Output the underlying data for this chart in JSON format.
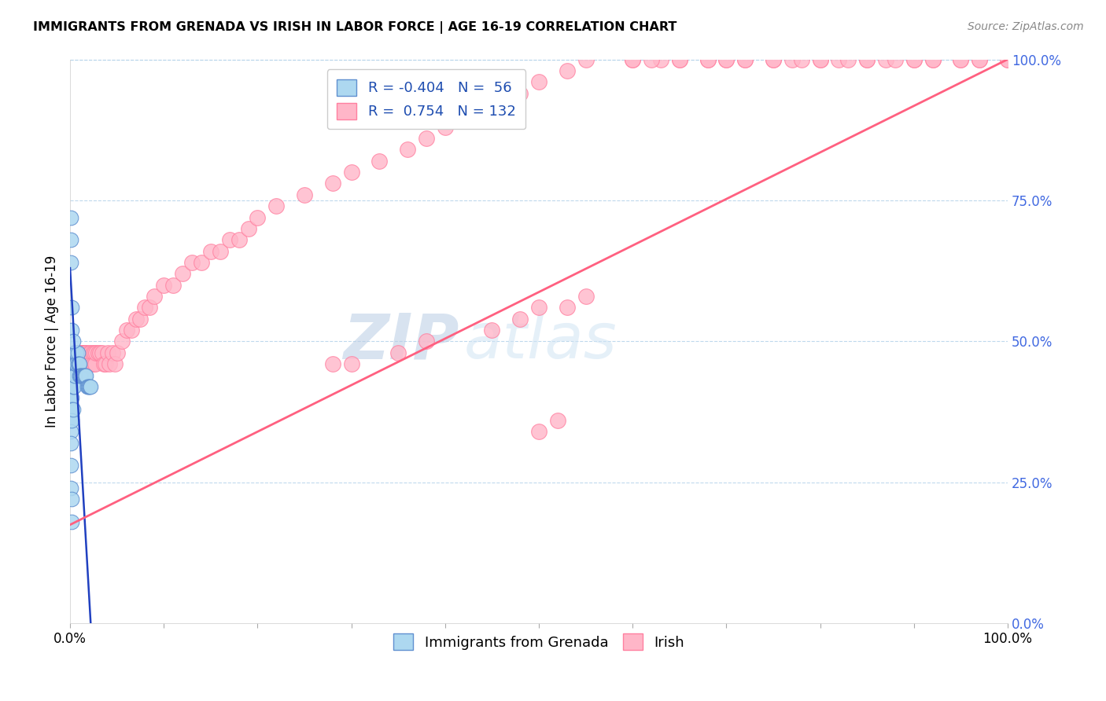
{
  "title": "IMMIGRANTS FROM GRENADA VS IRISH IN LABOR FORCE | AGE 16-19 CORRELATION CHART",
  "source": "Source: ZipAtlas.com",
  "ylabel": "In Labor Force | Age 16-19",
  "xlim": [
    0.0,
    1.0
  ],
  "ylim": [
    0.0,
    1.0
  ],
  "grenada_color": "#ADD8F0",
  "irish_color": "#FFB6C8",
  "grenada_edge": "#6090D0",
  "irish_edge": "#FF80A0",
  "grenada_R": -0.404,
  "grenada_N": 56,
  "irish_R": 0.754,
  "irish_N": 132,
  "legend_label_grenada": "Immigrants from Grenada",
  "legend_label_irish": "Irish",
  "watermark_zip": "ZIP",
  "watermark_atlas": "atlas",
  "grenada_line_color": "#2040C0",
  "irish_line_color": "#FF6080",
  "right_ytick_labels": [
    "100.0%",
    "75.0%",
    "50.0%",
    "25.0%",
    "0.0%"
  ],
  "right_ytick_positions": [
    1.0,
    0.75,
    0.5,
    0.25,
    0.0
  ],
  "bottom_xtick_left": "0.0%",
  "bottom_xtick_right": "100.0%",
  "grenada_line_x": [
    0.0,
    0.022
  ],
  "grenada_line_y": [
    0.63,
    0.0
  ],
  "irish_line_x": [
    0.0,
    1.0
  ],
  "irish_line_y": [
    0.175,
    1.0
  ],
  "grenada_x": [
    0.001,
    0.001,
    0.001,
    0.001,
    0.001,
    0.001,
    0.001,
    0.001,
    0.001,
    0.002,
    0.002,
    0.002,
    0.002,
    0.002,
    0.002,
    0.002,
    0.002,
    0.003,
    0.003,
    0.003,
    0.003,
    0.003,
    0.004,
    0.004,
    0.004,
    0.004,
    0.005,
    0.005,
    0.005,
    0.006,
    0.006,
    0.007,
    0.007,
    0.008,
    0.008,
    0.009,
    0.01,
    0.01,
    0.011,
    0.012,
    0.013,
    0.014,
    0.015,
    0.016,
    0.017,
    0.018,
    0.019,
    0.02,
    0.021,
    0.022,
    0.001,
    0.001,
    0.001,
    0.002,
    0.002,
    0.003
  ],
  "grenada_y": [
    0.44,
    0.42,
    0.4,
    0.38,
    0.36,
    0.34,
    0.32,
    0.28,
    0.24,
    0.46,
    0.44,
    0.42,
    0.4,
    0.38,
    0.36,
    0.22,
    0.18,
    0.48,
    0.46,
    0.44,
    0.42,
    0.38,
    0.48,
    0.46,
    0.44,
    0.42,
    0.48,
    0.46,
    0.44,
    0.48,
    0.46,
    0.48,
    0.46,
    0.48,
    0.46,
    0.46,
    0.46,
    0.44,
    0.44,
    0.44,
    0.44,
    0.44,
    0.44,
    0.44,
    0.44,
    0.42,
    0.42,
    0.42,
    0.42,
    0.42,
    0.72,
    0.68,
    0.64,
    0.56,
    0.52,
    0.5
  ],
  "irish_x": [
    0.001,
    0.002,
    0.003,
    0.004,
    0.005,
    0.005,
    0.005,
    0.006,
    0.006,
    0.007,
    0.007,
    0.008,
    0.008,
    0.009,
    0.009,
    0.01,
    0.01,
    0.011,
    0.011,
    0.012,
    0.012,
    0.013,
    0.013,
    0.014,
    0.014,
    0.015,
    0.015,
    0.016,
    0.016,
    0.017,
    0.017,
    0.018,
    0.019,
    0.02,
    0.02,
    0.021,
    0.022,
    0.023,
    0.024,
    0.025,
    0.026,
    0.027,
    0.028,
    0.03,
    0.032,
    0.034,
    0.036,
    0.038,
    0.04,
    0.042,
    0.045,
    0.048,
    0.05,
    0.055,
    0.06,
    0.065,
    0.07,
    0.075,
    0.08,
    0.085,
    0.09,
    0.1,
    0.11,
    0.12,
    0.13,
    0.14,
    0.15,
    0.16,
    0.17,
    0.18,
    0.19,
    0.2,
    0.22,
    0.25,
    0.28,
    0.3,
    0.33,
    0.36,
    0.38,
    0.4,
    0.43,
    0.45,
    0.48,
    0.5,
    0.53,
    0.55,
    0.6,
    0.63,
    0.65,
    0.68,
    0.7,
    0.72,
    0.75,
    0.77,
    0.8,
    0.82,
    0.85,
    0.87,
    0.9,
    0.92,
    0.95,
    0.97,
    1.0,
    0.6,
    0.62,
    0.65,
    0.68,
    0.7,
    0.72,
    0.75,
    0.78,
    0.8,
    0.83,
    0.85,
    0.88,
    0.9,
    0.92,
    0.95,
    0.97,
    1.0,
    0.45,
    0.48,
    0.5,
    0.53,
    0.55,
    0.28,
    0.3,
    0.35,
    0.38,
    0.5,
    0.52
  ],
  "irish_y": [
    0.42,
    0.44,
    0.46,
    0.46,
    0.44,
    0.46,
    0.48,
    0.46,
    0.48,
    0.46,
    0.48,
    0.46,
    0.48,
    0.46,
    0.48,
    0.46,
    0.48,
    0.46,
    0.48,
    0.46,
    0.48,
    0.46,
    0.48,
    0.46,
    0.48,
    0.46,
    0.48,
    0.46,
    0.48,
    0.46,
    0.48,
    0.46,
    0.46,
    0.46,
    0.48,
    0.46,
    0.48,
    0.46,
    0.48,
    0.46,
    0.48,
    0.46,
    0.48,
    0.48,
    0.48,
    0.48,
    0.46,
    0.46,
    0.48,
    0.46,
    0.48,
    0.46,
    0.48,
    0.5,
    0.52,
    0.52,
    0.54,
    0.54,
    0.56,
    0.56,
    0.58,
    0.6,
    0.6,
    0.62,
    0.64,
    0.64,
    0.66,
    0.66,
    0.68,
    0.68,
    0.7,
    0.72,
    0.74,
    0.76,
    0.78,
    0.8,
    0.82,
    0.84,
    0.86,
    0.88,
    0.9,
    0.92,
    0.94,
    0.96,
    0.98,
    1.0,
    1.0,
    1.0,
    1.0,
    1.0,
    1.0,
    1.0,
    1.0,
    1.0,
    1.0,
    1.0,
    1.0,
    1.0,
    1.0,
    1.0,
    1.0,
    1.0,
    1.0,
    1.0,
    1.0,
    1.0,
    1.0,
    1.0,
    1.0,
    1.0,
    1.0,
    1.0,
    1.0,
    1.0,
    1.0,
    1.0,
    1.0,
    1.0,
    1.0,
    1.0,
    0.52,
    0.54,
    0.56,
    0.56,
    0.58,
    0.46,
    0.46,
    0.48,
    0.5,
    0.34,
    0.36
  ]
}
